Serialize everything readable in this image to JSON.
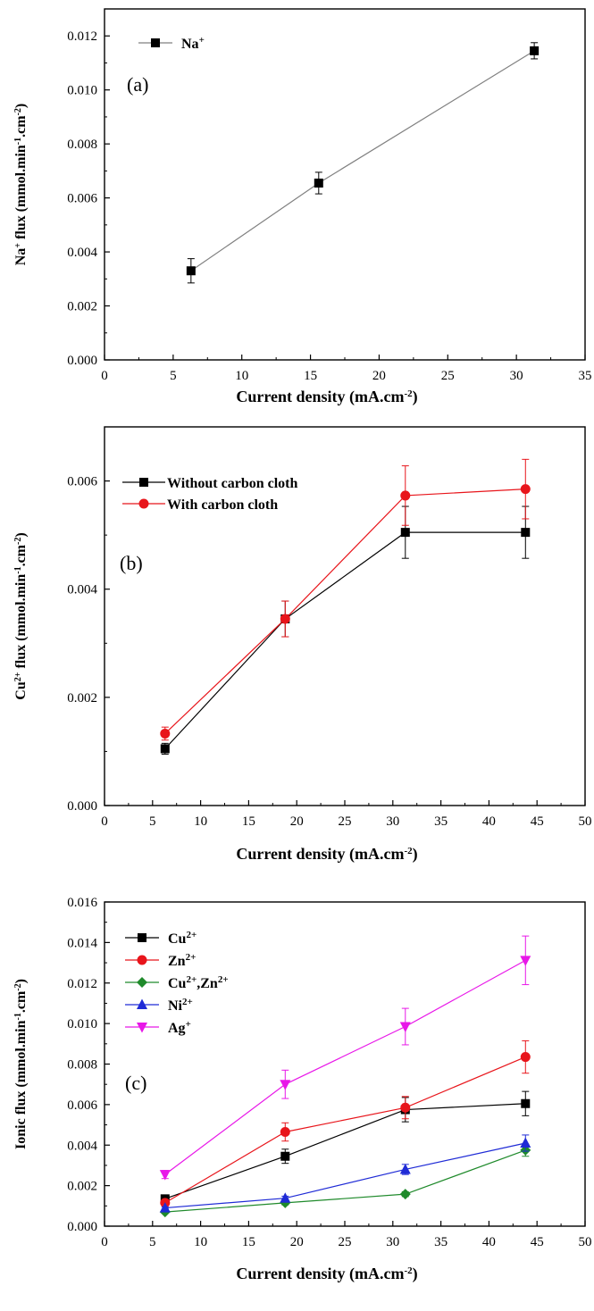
{
  "chart_data": [
    {
      "type": "line",
      "panel_label": "(a)",
      "xlabel": "Current density (mA.cm⁻²)",
      "ylabel": "Na⁺ flux (mmol.min⁻¹.cm⁻²)",
      "xlim": [
        0,
        35
      ],
      "ylim": [
        0,
        0.013
      ],
      "xticks": [
        "0",
        "5",
        "10",
        "15",
        "20",
        "25",
        "30",
        "35"
      ],
      "yticks": [
        "0.000",
        "0.002",
        "0.004",
        "0.006",
        "0.008",
        "0.010",
        "0.012"
      ],
      "legend_position": "top-left",
      "series": [
        {
          "name": "Na⁺",
          "color": "#000000",
          "line_color": "#808080",
          "marker": "square",
          "x": [
            6.3,
            15.6,
            31.3
          ],
          "y": [
            0.0033,
            0.00655,
            0.01145
          ],
          "err": [
            0.00045,
            0.0004,
            0.0003
          ]
        }
      ]
    },
    {
      "type": "line",
      "panel_label": "(b)",
      "xlabel": "Current density (mA.cm⁻²)",
      "ylabel": "Cu²⁺ flux (mmol.min⁻¹.cm⁻²)",
      "xlim": [
        0,
        50
      ],
      "ylim": [
        0,
        0.007
      ],
      "xticks": [
        "0",
        "5",
        "10",
        "15",
        "20",
        "25",
        "30",
        "35",
        "40",
        "45",
        "50"
      ],
      "yticks": [
        "0.000",
        "0.002",
        "0.004",
        "0.006"
      ],
      "legend_position": "top-left",
      "series": [
        {
          "name": "Without carbon cloth",
          "color": "#000000",
          "line_color": "#000000",
          "marker": "square",
          "x": [
            6.3,
            18.8,
            31.3,
            43.8
          ],
          "y": [
            0.00105,
            0.00345,
            0.00505,
            0.00505
          ],
          "err": [
            0.0001,
            0.00033,
            0.00048,
            0.00048
          ]
        },
        {
          "name": "With carbon cloth",
          "color": "#e8151b",
          "line_color": "#e8151b",
          "marker": "circle",
          "x": [
            6.3,
            18.8,
            31.3,
            43.8
          ],
          "y": [
            0.00133,
            0.00345,
            0.00573,
            0.00585
          ],
          "err": [
            0.00012,
            0.00033,
            0.00055,
            0.00055
          ]
        }
      ]
    },
    {
      "type": "line",
      "panel_label": "(c)",
      "xlabel": "Current density (mA.cm⁻²)",
      "ylabel": "Ionic flux (mmol.min⁻¹.cm⁻²)",
      "xlim": [
        0,
        50
      ],
      "ylim": [
        0,
        0.016
      ],
      "xticks": [
        "0",
        "5",
        "10",
        "15",
        "20",
        "25",
        "30",
        "35",
        "40",
        "45",
        "50"
      ],
      "yticks": [
        "0.000",
        "0.002",
        "0.004",
        "0.006",
        "0.008",
        "0.010",
        "0.012",
        "0.014",
        "0.016"
      ],
      "legend_position": "top-left",
      "series": [
        {
          "name": "Cu²⁺",
          "color": "#000000",
          "line_color": "#000000",
          "marker": "square",
          "x": [
            6.3,
            18.8,
            31.3,
            43.8
          ],
          "y": [
            0.00135,
            0.00345,
            0.00575,
            0.00605
          ],
          "err": [
            0.0001,
            0.00035,
            0.0006,
            0.0006
          ]
        },
        {
          "name": "Zn²⁺",
          "color": "#e8151b",
          "line_color": "#e8151b",
          "marker": "circle",
          "x": [
            6.3,
            18.8,
            31.3,
            43.8
          ],
          "y": [
            0.00115,
            0.00465,
            0.00585,
            0.00835
          ],
          "err": [
            0.0001,
            0.00045,
            0.00055,
            0.0008
          ]
        },
        {
          "name": "Cu²⁺,Zn²⁺",
          "color": "#1f8a2b",
          "line_color": "#1f8a2b",
          "marker": "diamond",
          "x": [
            6.3,
            18.8,
            31.3,
            43.8
          ],
          "y": [
            0.0007,
            0.00115,
            0.00158,
            0.00375
          ],
          "err": [
            5e-05,
            0.0001,
            0.00012,
            0.0003
          ]
        },
        {
          "name": "Ni²⁺",
          "color": "#1f2bd6",
          "line_color": "#1f2bd6",
          "marker": "triangle-up",
          "x": [
            6.3,
            18.8,
            31.3,
            43.8
          ],
          "y": [
            0.0009,
            0.00138,
            0.0028,
            0.0041
          ],
          "err": [
            5e-05,
            0.0001,
            0.00025,
            0.0004
          ]
        },
        {
          "name": "Ag⁺",
          "color": "#e817e8",
          "line_color": "#e817e8",
          "marker": "triangle-down",
          "x": [
            6.3,
            18.8,
            31.3,
            43.8
          ],
          "y": [
            0.00255,
            0.007,
            0.00985,
            0.01312
          ],
          "err": [
            0.0002,
            0.0007,
            0.0009,
            0.0012
          ]
        }
      ]
    }
  ]
}
